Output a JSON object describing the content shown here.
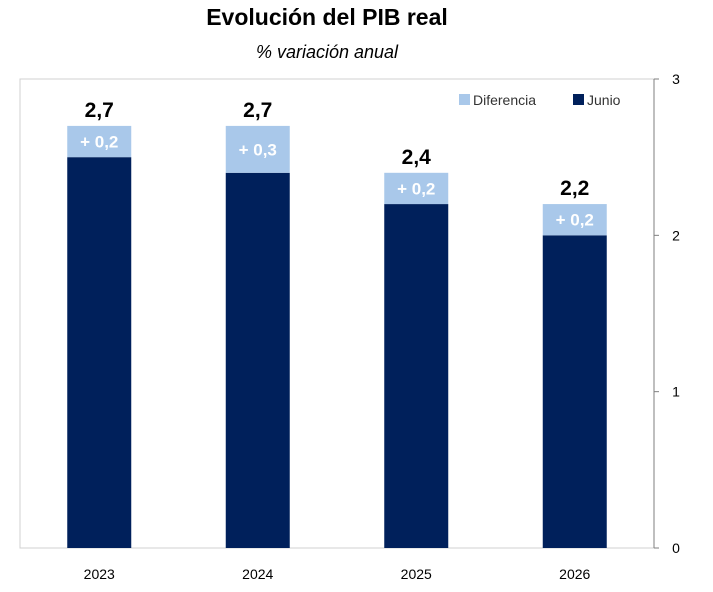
{
  "chart_data": {
    "type": "bar",
    "stacked": true,
    "title": "Evolución del PIB real",
    "subtitle": "% variación anual",
    "categories": [
      "2023",
      "2024",
      "2025",
      "2026"
    ],
    "series": [
      {
        "name": "Junio",
        "color": "#00205B",
        "values": [
          2.5,
          2.4,
          2.2,
          2.0
        ]
      },
      {
        "name": "Diferencia",
        "color": "#A9C8EA",
        "values": [
          0.2,
          0.3,
          0.2,
          0.2
        ]
      }
    ],
    "total_labels": [
      "2,7",
      "2,7",
      "2,4",
      "2,2"
    ],
    "diff_labels": [
      "+ 0,2",
      "+ 0,3",
      "+ 0,2",
      "+ 0,2"
    ],
    "ylim": [
      0,
      3
    ],
    "yticks": [
      "0",
      "1",
      "2",
      "3"
    ],
    "y_axis_side": "right",
    "legend": {
      "position": "top-right",
      "items": [
        {
          "label": "Diferencia",
          "color": "#A9C8EA"
        },
        {
          "label": "Junio",
          "color": "#00205B"
        }
      ]
    },
    "xlabel": "",
    "ylabel": ""
  }
}
